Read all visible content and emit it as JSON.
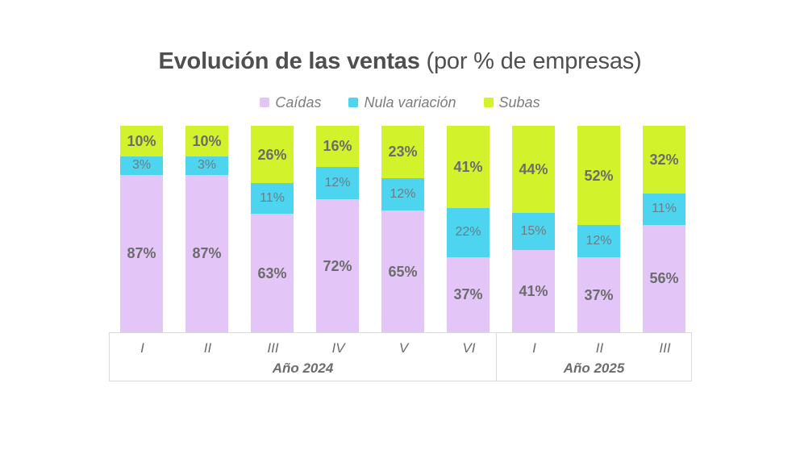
{
  "title": {
    "main": "Evolución de las ventas",
    "suffix": " (por % de empresas)"
  },
  "legend": [
    {
      "label": "Caídas",
      "color": "#e4c5f8"
    },
    {
      "label": "Nula variación",
      "color": "#4dd4ee"
    },
    {
      "label": "Subas",
      "color": "#d2f32c"
    }
  ],
  "chart_data": {
    "type": "bar",
    "variant": "stacked-100-percent",
    "unit": "%",
    "title": "Evolución de las ventas (por % de empresas)",
    "categories": [
      "I",
      "II",
      "III",
      "IV",
      "V",
      "VI",
      "I",
      "II",
      "III"
    ],
    "groups": [
      {
        "label": "Año 2024",
        "span": 6
      },
      {
        "label": "Año 2025",
        "span": 3
      }
    ],
    "series": [
      {
        "name": "Caídas",
        "key": "caidas",
        "color": "#e4c5f8",
        "values": [
          87,
          87,
          63,
          72,
          65,
          37,
          41,
          37,
          56
        ]
      },
      {
        "name": "Nula variación",
        "key": "nula-variacion",
        "color": "#4dd4ee",
        "values": [
          3,
          3,
          11,
          12,
          12,
          22,
          15,
          12,
          11
        ]
      },
      {
        "name": "Subas",
        "key": "subas",
        "color": "#d2f32c",
        "values": [
          10,
          10,
          26,
          16,
          23,
          41,
          44,
          52,
          32
        ]
      }
    ],
    "ylim": [
      0,
      100
    ],
    "grid": false,
    "legend_position": "top"
  }
}
